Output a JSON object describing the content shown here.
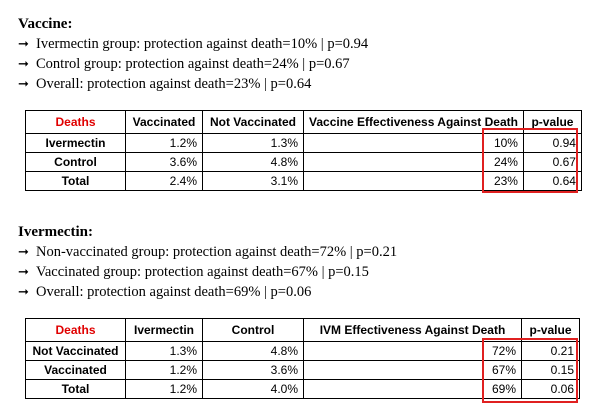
{
  "arrow_glyph": "➞",
  "vaccine": {
    "heading": "Vaccine:",
    "bullets": [
      "Ivermectin group: protection against death=10% | p=0.94",
      "Control group: protection against death=24% | p=0.67",
      "Overall: protection against death=23% | p=0.64"
    ],
    "table": {
      "header": [
        "Deaths",
        "Vaccinated",
        "Not Vaccinated",
        "Vaccine Effectiveness Against Death",
        "p-value"
      ],
      "rows": [
        [
          "Ivermectin",
          "1.2%",
          "1.3%",
          "10%",
          "0.94"
        ],
        [
          "Control",
          "3.6%",
          "4.8%",
          "24%",
          "0.67"
        ],
        [
          "Total",
          "2.4%",
          "3.1%",
          "23%",
          "0.64"
        ]
      ]
    }
  },
  "ivermectin": {
    "heading": "Ivermectin:",
    "bullets": [
      "Non-vaccinated group: protection against death=72% | p=0.21",
      "Vaccinated group: protection against death=67% | p=0.15",
      "Overall: protection against death=69% | p=0.06"
    ],
    "table": {
      "header": [
        "Deaths",
        "Ivermectin",
        "Control",
        "IVM Effectiveness Against Death",
        "p-value"
      ],
      "rows": [
        [
          "Not Vaccinated",
          "1.3%",
          "4.8%",
          "72%",
          "0.21"
        ],
        [
          "Vaccinated",
          "1.2%",
          "3.6%",
          "67%",
          "0.15"
        ],
        [
          "Total",
          "1.2%",
          "4.0%",
          "69%",
          "0.06"
        ]
      ]
    }
  },
  "colors": {
    "deaths_label": "#e00000",
    "highlight_box": "#e02020"
  }
}
